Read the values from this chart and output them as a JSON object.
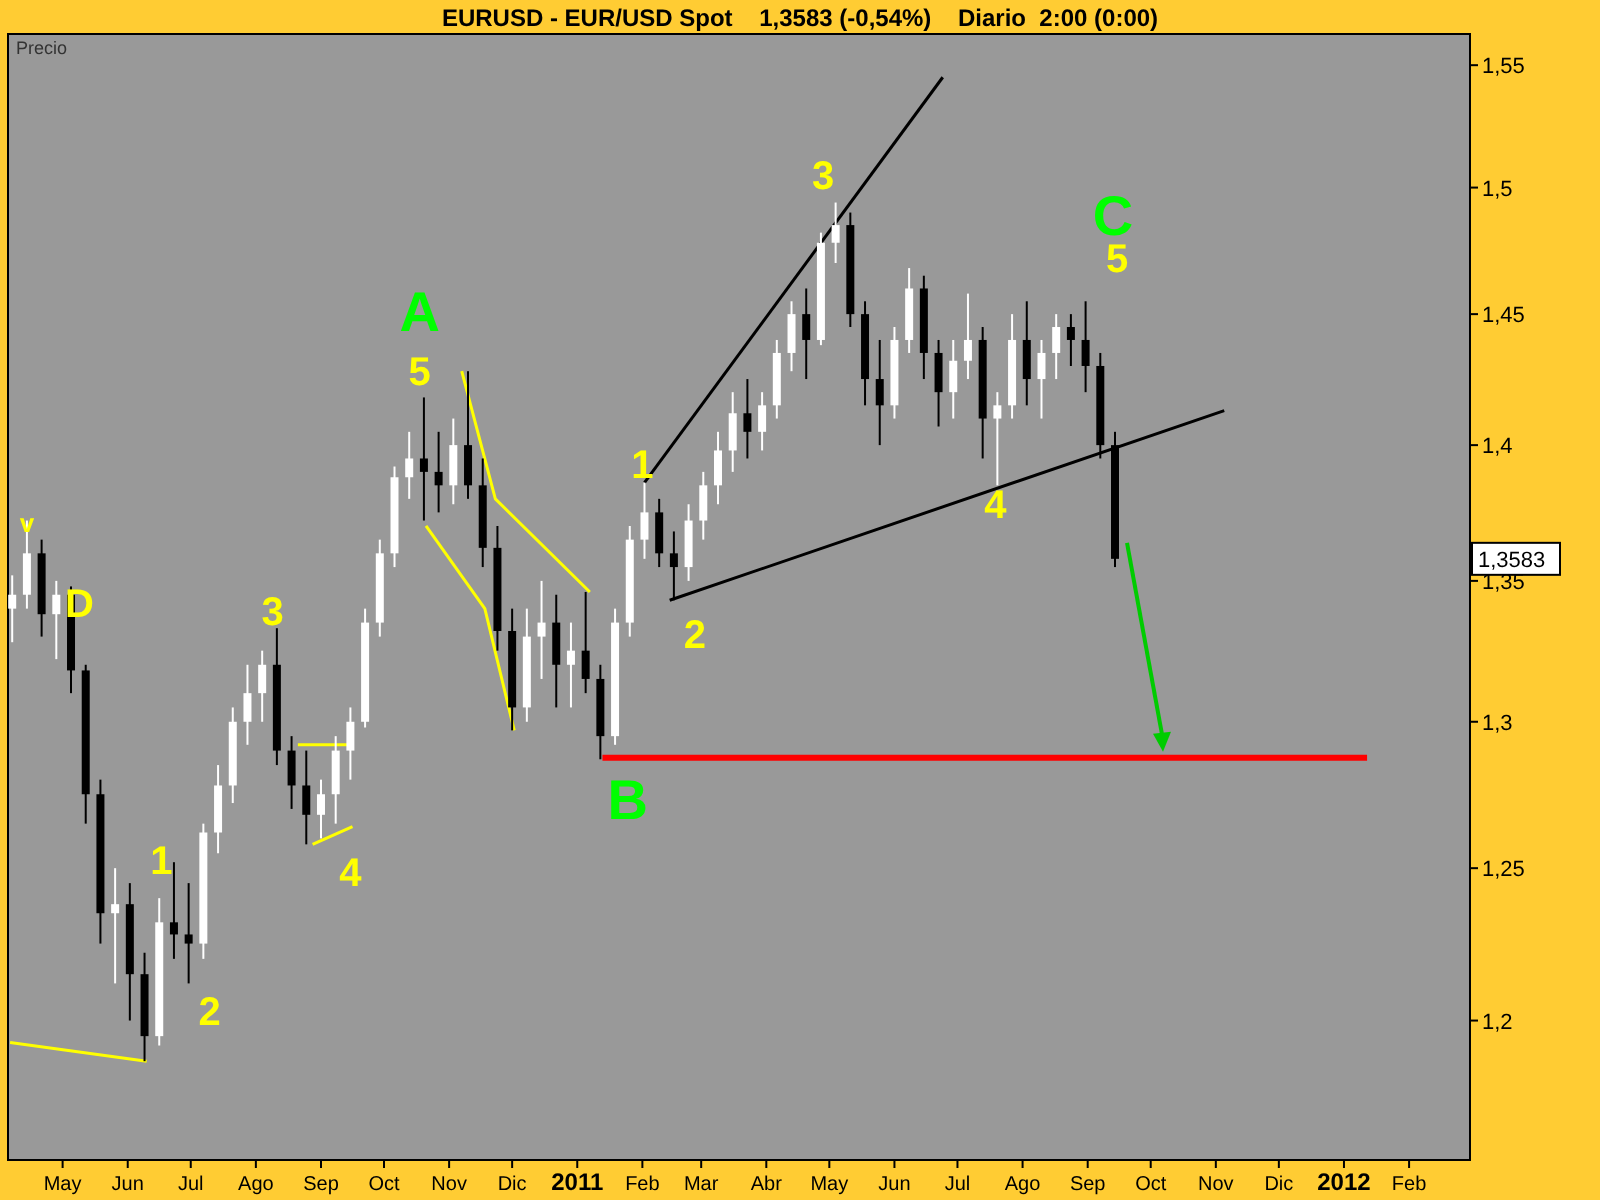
{
  "chart_data": {
    "type": "candlestick",
    "title": "EURUSD - EUR/USD Spot    1,3583 (-0,54%)    Diario  2:00 (0:00)",
    "log": "y",
    "grid": false,
    "xlim": [
      "2010-04-05",
      "2012-03-01"
    ],
    "xticks": [
      {
        "value": "2010-05-01",
        "label": "May"
      },
      {
        "value": "2010-06-01",
        "label": "Jun"
      },
      {
        "value": "2010-07-01",
        "label": "Jul"
      },
      {
        "value": "2010-08-01",
        "label": "Ago"
      },
      {
        "value": "2010-09-01",
        "label": "Sep"
      },
      {
        "value": "2010-10-01",
        "label": "Oct"
      },
      {
        "value": "2010-11-01",
        "label": "Nov"
      },
      {
        "value": "2010-12-01",
        "label": "Dic"
      },
      {
        "value": "2011-01-01",
        "label": "2011"
      },
      {
        "value": "2011-02-01",
        "label": "Feb"
      },
      {
        "value": "2011-03-01",
        "label": "Mar"
      },
      {
        "value": "2011-04-01",
        "label": "Abr"
      },
      {
        "value": "2011-05-01",
        "label": "May"
      },
      {
        "value": "2011-06-01",
        "label": "Jun"
      },
      {
        "value": "2011-07-01",
        "label": "Jul"
      },
      {
        "value": "2011-08-01",
        "label": "Ago"
      },
      {
        "value": "2011-09-01",
        "label": "Sep"
      },
      {
        "value": "2011-10-01",
        "label": "Oct"
      },
      {
        "value": "2011-11-01",
        "label": "Nov"
      },
      {
        "value": "2011-12-01",
        "label": "Dic"
      },
      {
        "value": "2012-01-01",
        "label": "2012"
      },
      {
        "value": "2012-02-01",
        "label": "Feb"
      }
    ],
    "ylim": [
      1.156,
      1.563
    ],
    "yticks": [
      {
        "value": 1.2,
        "label": "1,2"
      },
      {
        "value": 1.25,
        "label": "1,25"
      },
      {
        "value": 1.3,
        "label": "1,3"
      },
      {
        "value": 1.35,
        "label": "1,35"
      },
      {
        "value": 1.4,
        "label": "1,4"
      },
      {
        "value": 1.45,
        "label": "1,45"
      },
      {
        "value": 1.5,
        "label": "1,5"
      },
      {
        "value": 1.55,
        "label": "1,55"
      }
    ],
    "x": [
      "2010-04-07",
      "2010-04-14",
      "2010-04-21",
      "2010-04-28",
      "2010-05-05",
      "2010-05-12",
      "2010-05-19",
      "2010-05-26",
      "2010-06-02",
      "2010-06-09",
      "2010-06-16",
      "2010-06-23",
      "2010-06-30",
      "2010-07-07",
      "2010-07-14",
      "2010-07-21",
      "2010-07-28",
      "2010-08-04",
      "2010-08-11",
      "2010-08-18",
      "2010-08-25",
      "2010-09-01",
      "2010-09-08",
      "2010-09-15",
      "2010-09-22",
      "2010-09-29",
      "2010-10-06",
      "2010-10-13",
      "2010-10-20",
      "2010-10-27",
      "2010-11-03",
      "2010-11-10",
      "2010-11-17",
      "2010-11-24",
      "2010-12-01",
      "2010-12-08",
      "2010-12-15",
      "2010-12-22",
      "2010-12-29",
      "2011-01-05",
      "2011-01-12",
      "2011-01-19",
      "2011-01-26",
      "2011-02-02",
      "2011-02-09",
      "2011-02-16",
      "2011-02-23",
      "2011-03-02",
      "2011-03-09",
      "2011-03-16",
      "2011-03-23",
      "2011-03-30",
      "2011-04-06",
      "2011-04-13",
      "2011-04-20",
      "2011-04-27",
      "2011-05-04",
      "2011-05-11",
      "2011-05-18",
      "2011-05-25",
      "2011-06-01",
      "2011-06-08",
      "2011-06-15",
      "2011-06-22",
      "2011-06-29",
      "2011-07-06",
      "2011-07-13",
      "2011-07-20",
      "2011-07-27",
      "2011-08-03",
      "2011-08-10",
      "2011-08-17",
      "2011-08-24",
      "2011-08-31",
      "2011-09-07",
      "2011-09-14"
    ],
    "ohlc": [
      [
        1.34,
        1.352,
        1.328,
        1.345
      ],
      [
        1.345,
        1.372,
        1.34,
        1.36
      ],
      [
        1.36,
        1.365,
        1.33,
        1.338
      ],
      [
        1.338,
        1.35,
        1.322,
        1.345
      ],
      [
        1.345,
        1.348,
        1.31,
        1.318
      ],
      [
        1.318,
        1.32,
        1.265,
        1.275
      ],
      [
        1.275,
        1.28,
        1.225,
        1.235
      ],
      [
        1.235,
        1.25,
        1.212,
        1.238
      ],
      [
        1.238,
        1.245,
        1.2,
        1.215
      ],
      [
        1.215,
        1.222,
        1.187,
        1.195
      ],
      [
        1.195,
        1.24,
        1.192,
        1.232
      ],
      [
        1.232,
        1.252,
        1.22,
        1.228
      ],
      [
        1.228,
        1.245,
        1.212,
        1.225
      ],
      [
        1.225,
        1.265,
        1.22,
        1.262
      ],
      [
        1.262,
        1.285,
        1.255,
        1.278
      ],
      [
        1.278,
        1.305,
        1.272,
        1.3
      ],
      [
        1.3,
        1.32,
        1.292,
        1.31
      ],
      [
        1.31,
        1.325,
        1.3,
        1.32
      ],
      [
        1.32,
        1.333,
        1.285,
        1.29
      ],
      [
        1.29,
        1.295,
        1.27,
        1.278
      ],
      [
        1.278,
        1.29,
        1.258,
        1.268
      ],
      [
        1.268,
        1.28,
        1.26,
        1.275
      ],
      [
        1.275,
        1.295,
        1.265,
        1.29
      ],
      [
        1.29,
        1.305,
        1.28,
        1.3
      ],
      [
        1.3,
        1.34,
        1.298,
        1.335
      ],
      [
        1.335,
        1.365,
        1.33,
        1.36
      ],
      [
        1.36,
        1.392,
        1.355,
        1.388
      ],
      [
        1.388,
        1.405,
        1.38,
        1.395
      ],
      [
        1.395,
        1.418,
        1.372,
        1.39
      ],
      [
        1.39,
        1.405,
        1.375,
        1.385
      ],
      [
        1.385,
        1.41,
        1.378,
        1.4
      ],
      [
        1.4,
        1.428,
        1.38,
        1.385
      ],
      [
        1.385,
        1.395,
        1.355,
        1.362
      ],
      [
        1.362,
        1.37,
        1.325,
        1.332
      ],
      [
        1.332,
        1.34,
        1.297,
        1.305
      ],
      [
        1.305,
        1.34,
        1.3,
        1.33
      ],
      [
        1.33,
        1.35,
        1.315,
        1.335
      ],
      [
        1.335,
        1.345,
        1.305,
        1.32
      ],
      [
        1.32,
        1.335,
        1.305,
        1.325
      ],
      [
        1.325,
        1.346,
        1.31,
        1.315
      ],
      [
        1.315,
        1.32,
        1.287,
        1.295
      ],
      [
        1.295,
        1.34,
        1.292,
        1.335
      ],
      [
        1.335,
        1.37,
        1.33,
        1.365
      ],
      [
        1.365,
        1.386,
        1.358,
        1.375
      ],
      [
        1.375,
        1.38,
        1.355,
        1.36
      ],
      [
        1.36,
        1.368,
        1.343,
        1.355
      ],
      [
        1.355,
        1.378,
        1.35,
        1.372
      ],
      [
        1.372,
        1.39,
        1.365,
        1.385
      ],
      [
        1.385,
        1.405,
        1.378,
        1.398
      ],
      [
        1.398,
        1.42,
        1.39,
        1.412
      ],
      [
        1.412,
        1.425,
        1.395,
        1.405
      ],
      [
        1.405,
        1.42,
        1.398,
        1.415
      ],
      [
        1.415,
        1.44,
        1.41,
        1.435
      ],
      [
        1.435,
        1.455,
        1.428,
        1.45
      ],
      [
        1.45,
        1.46,
        1.425,
        1.44
      ],
      [
        1.44,
        1.482,
        1.438,
        1.478
      ],
      [
        1.478,
        1.494,
        1.47,
        1.485
      ],
      [
        1.485,
        1.49,
        1.445,
        1.45
      ],
      [
        1.45,
        1.455,
        1.415,
        1.425
      ],
      [
        1.425,
        1.44,
        1.4,
        1.415
      ],
      [
        1.415,
        1.445,
        1.41,
        1.44
      ],
      [
        1.44,
        1.468,
        1.435,
        1.46
      ],
      [
        1.46,
        1.465,
        1.425,
        1.435
      ],
      [
        1.435,
        1.44,
        1.407,
        1.42
      ],
      [
        1.42,
        1.44,
        1.41,
        1.432
      ],
      [
        1.432,
        1.458,
        1.425,
        1.44
      ],
      [
        1.44,
        1.445,
        1.395,
        1.41
      ],
      [
        1.41,
        1.42,
        1.385,
        1.415
      ],
      [
        1.415,
        1.45,
        1.41,
        1.44
      ],
      [
        1.44,
        1.455,
        1.415,
        1.425
      ],
      [
        1.425,
        1.44,
        1.41,
        1.435
      ],
      [
        1.435,
        1.45,
        1.425,
        1.445
      ],
      [
        1.445,
        1.45,
        1.43,
        1.44
      ],
      [
        1.44,
        1.455,
        1.42,
        1.43
      ],
      [
        1.43,
        1.435,
        1.395,
        1.4
      ],
      [
        1.4,
        1.405,
        1.355,
        1.358
      ]
    ],
    "colors": [
      "#ffffff",
      "#ffffff",
      "#000000",
      "#ffffff",
      "#000000",
      "#000000",
      "#000000",
      "#ffffff",
      "#000000",
      "#000000",
      "#ffffff",
      "#000000",
      "#000000",
      "#ffffff",
      "#ffffff",
      "#ffffff",
      "#ffffff",
      "#ffffff",
      "#000000",
      "#000000",
      "#000000",
      "#ffffff",
      "#ffffff",
      "#ffffff",
      "#ffffff",
      "#ffffff",
      "#ffffff",
      "#ffffff",
      "#000000",
      "#000000",
      "#ffffff",
      "#000000",
      "#000000",
      "#000000",
      "#000000",
      "#ffffff",
      "#ffffff",
      "#000000",
      "#ffffff",
      "#000000",
      "#000000",
      "#ffffff",
      "#ffffff",
      "#ffffff",
      "#000000",
      "#000000",
      "#ffffff",
      "#ffffff",
      "#ffffff",
      "#ffffff",
      "#000000",
      "#ffffff",
      "#ffffff",
      "#ffffff",
      "#000000",
      "#ffffff",
      "#ffffff",
      "#000000",
      "#000000",
      "#000000",
      "#ffffff",
      "#ffffff",
      "#000000",
      "#000000",
      "#ffffff",
      "#ffffff",
      "#000000",
      "#ffffff",
      "#ffffff",
      "#000000",
      "#ffffff",
      "#ffffff",
      "#000000",
      "#000000",
      "#000000",
      "#000000"
    ],
    "series": [
      {
        "type": "line",
        "color": "#000000",
        "x": [
          "2011-02-02",
          "2011-06-24"
        ],
        "values": [
          1.386,
          1.545
        ]
      },
      {
        "type": "line",
        "color": "#000000",
        "x": [
          "2011-02-14",
          "2011-11-05"
        ],
        "values": [
          1.343,
          1.413
        ]
      },
      {
        "type": "line",
        "color": "#ffff00",
        "x": [
          "2010-04-06",
          "2010-06-10"
        ],
        "values": [
          1.193,
          1.187
        ]
      },
      {
        "type": "line",
        "color": "#ffff00",
        "x": [
          "2010-11-07",
          "2010-11-23",
          "2011-01-07"
        ],
        "values": [
          1.428,
          1.38,
          1.346
        ]
      },
      {
        "type": "line",
        "color": "#ffff00",
        "x": [
          "2010-10-21",
          "2010-11-18",
          "2010-12-02"
        ],
        "values": [
          1.37,
          1.34,
          1.297
        ]
      },
      {
        "type": "line",
        "color": "#ffff00",
        "x": [
          "2010-08-21",
          "2010-09-16"
        ],
        "values": [
          1.292,
          1.292
        ]
      },
      {
        "type": "line",
        "color": "#ffff00",
        "x": [
          "2010-08-28",
          "2010-09-16"
        ],
        "values": [
          1.258,
          1.264
        ]
      },
      {
        "type": "line",
        "color": "#ff0000",
        "x": [
          "2011-01-13",
          "2012-01-12"
        ],
        "values": [
          1.2875,
          1.2875
        ]
      }
    ],
    "annotations": [
      "Precio",
      "1,3583",
      "v",
      "D",
      "1",
      "2",
      "3",
      "4",
      "5",
      "A",
      "B",
      "1",
      "2",
      "3",
      "4",
      "C",
      "5"
    ]
  }
}
